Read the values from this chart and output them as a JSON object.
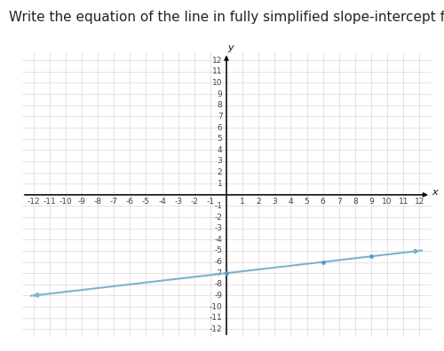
{
  "title": "Write the equation of the line in fully simplified slope-intercept form.",
  "slope": 0.16666666666666666,
  "y_intercept": -7,
  "x_range": [
    -12,
    12
  ],
  "y_range": [
    -12,
    12
  ],
  "line_color": "#7ab3d0",
  "line_width": 1.5,
  "grid_color": "#d0d0d0",
  "grid_linewidth": 0.4,
  "axis_color": "#111111",
  "background_color": "#ffffff",
  "tick_color": "#444444",
  "title_fontsize": 11,
  "title_ha": "left",
  "axis_label_x": "x",
  "axis_label_y": "y",
  "tick_fontsize": 6.5,
  "marker_points_x": [
    0,
    6,
    9
  ],
  "marker_color": "#5a9cc0",
  "marker_size": 3.5,
  "arrow_mutation_scale": 7,
  "axis_lw": 1.2
}
